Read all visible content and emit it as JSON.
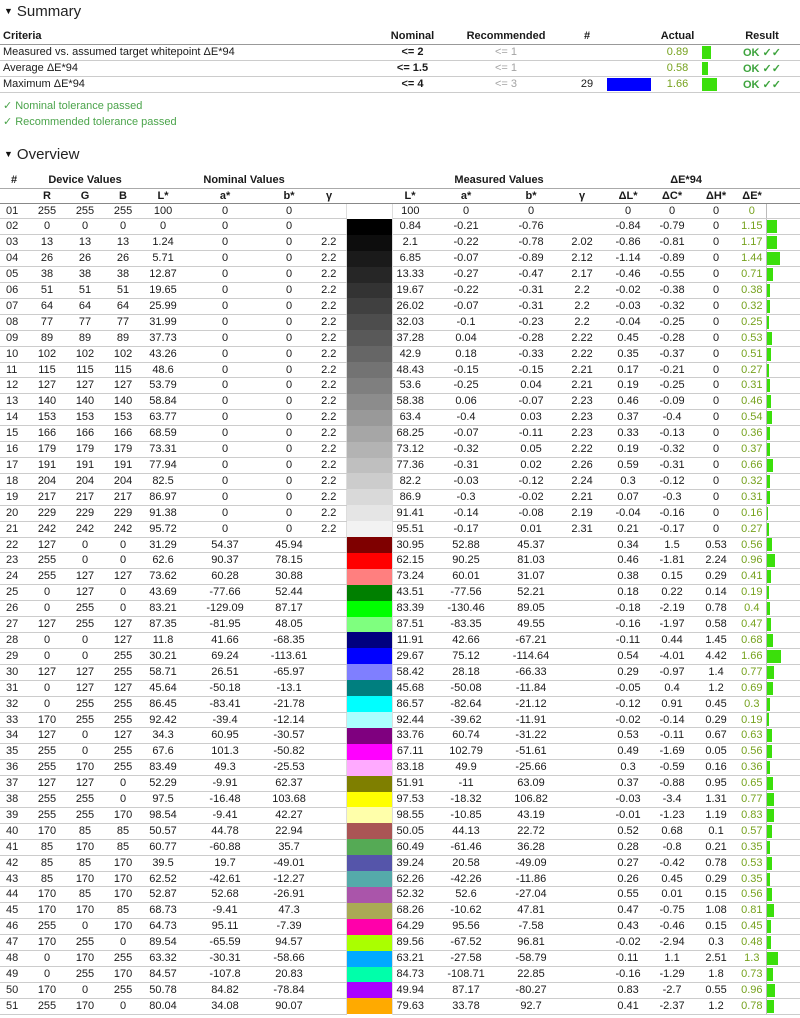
{
  "summary": {
    "title": "Summary",
    "headers": {
      "criteria": "Criteria",
      "nominal": "Nominal",
      "recommended": "Recommended",
      "count": "#",
      "actual": "Actual",
      "result": "Result"
    },
    "rows": [
      {
        "criteria": "Measured vs. assumed target whitepoint ΔE*94",
        "nominal": "<= 2",
        "recommended": "<= 1",
        "count": "",
        "swatch": "",
        "actual": "0.89",
        "result": "OK ✓✓"
      },
      {
        "criteria": "Average ΔE*94",
        "nominal": "<= 1.5",
        "recommended": "<= 1",
        "count": "",
        "swatch": "",
        "actual": "0.58",
        "result": "OK ✓✓"
      },
      {
        "criteria": "Maximum ΔE*94",
        "nominal": "<= 4",
        "recommended": "<= 3",
        "count": "29",
        "swatch": "#0000FF",
        "actual": "1.66",
        "result": "OK ✓✓"
      }
    ],
    "notes": [
      {
        "icon": "✓",
        "text": "Nominal tolerance passed"
      },
      {
        "icon": "✓",
        "text": "Recommended tolerance passed"
      }
    ]
  },
  "overview": {
    "title": "Overview",
    "groups": {
      "num": "#",
      "device": "Device Values",
      "nominal": "Nominal Values",
      "measured": "Measured Values",
      "de94": "ΔE*94"
    },
    "cols": [
      "R",
      "G",
      "B",
      "L*",
      "a*",
      "b*",
      "γ",
      "L*",
      "a*",
      "b*",
      "γ",
      "ΔL*",
      "ΔC*",
      "ΔH*",
      "ΔE*"
    ],
    "row_fields": [
      "index",
      "R",
      "G",
      "B",
      "nominal_L",
      "nominal_a",
      "nominal_b",
      "nominal_gamma",
      "measured_L",
      "measured_a",
      "measured_b",
      "measured_gamma",
      "delta_L",
      "delta_C",
      "delta_H",
      "delta_E"
    ],
    "rows": [
      [
        "01",
        "255",
        "255",
        "255",
        "100",
        "0",
        "0",
        "",
        "100",
        "0",
        "0",
        "",
        "0",
        "0",
        "0",
        "0"
      ],
      [
        "02",
        "0",
        "0",
        "0",
        "0",
        "0",
        "0",
        "",
        "0.84",
        "-0.21",
        "-0.76",
        "",
        "-0.84",
        "-0.79",
        "0",
        "1.15"
      ],
      [
        "03",
        "13",
        "13",
        "13",
        "1.24",
        "0",
        "0",
        "2.2",
        "2.1",
        "-0.22",
        "-0.78",
        "2.02",
        "-0.86",
        "-0.81",
        "0",
        "1.17"
      ],
      [
        "04",
        "26",
        "26",
        "26",
        "5.71",
        "0",
        "0",
        "2.2",
        "6.85",
        "-0.07",
        "-0.89",
        "2.12",
        "-1.14",
        "-0.89",
        "0",
        "1.44"
      ],
      [
        "05",
        "38",
        "38",
        "38",
        "12.87",
        "0",
        "0",
        "2.2",
        "13.33",
        "-0.27",
        "-0.47",
        "2.17",
        "-0.46",
        "-0.55",
        "0",
        "0.71"
      ],
      [
        "06",
        "51",
        "51",
        "51",
        "19.65",
        "0",
        "0",
        "2.2",
        "19.67",
        "-0.22",
        "-0.31",
        "2.2",
        "-0.02",
        "-0.38",
        "0",
        "0.38"
      ],
      [
        "07",
        "64",
        "64",
        "64",
        "25.99",
        "0",
        "0",
        "2.2",
        "26.02",
        "-0.07",
        "-0.31",
        "2.2",
        "-0.03",
        "-0.32",
        "0",
        "0.32"
      ],
      [
        "08",
        "77",
        "77",
        "77",
        "31.99",
        "0",
        "0",
        "2.2",
        "32.03",
        "-0.1",
        "-0.23",
        "2.2",
        "-0.04",
        "-0.25",
        "0",
        "0.25"
      ],
      [
        "09",
        "89",
        "89",
        "89",
        "37.73",
        "0",
        "0",
        "2.2",
        "37.28",
        "0.04",
        "-0.28",
        "2.22",
        "0.45",
        "-0.28",
        "0",
        "0.53"
      ],
      [
        "10",
        "102",
        "102",
        "102",
        "43.26",
        "0",
        "0",
        "2.2",
        "42.9",
        "0.18",
        "-0.33",
        "2.22",
        "0.35",
        "-0.37",
        "0",
        "0.51"
      ],
      [
        "11",
        "115",
        "115",
        "115",
        "48.6",
        "0",
        "0",
        "2.2",
        "48.43",
        "-0.15",
        "-0.15",
        "2.21",
        "0.17",
        "-0.21",
        "0",
        "0.27"
      ],
      [
        "12",
        "127",
        "127",
        "127",
        "53.79",
        "0",
        "0",
        "2.2",
        "53.6",
        "-0.25",
        "0.04",
        "2.21",
        "0.19",
        "-0.25",
        "0",
        "0.31"
      ],
      [
        "13",
        "140",
        "140",
        "140",
        "58.84",
        "0",
        "0",
        "2.2",
        "58.38",
        "0.06",
        "-0.07",
        "2.23",
        "0.46",
        "-0.09",
        "0",
        "0.46"
      ],
      [
        "14",
        "153",
        "153",
        "153",
        "63.77",
        "0",
        "0",
        "2.2",
        "63.4",
        "-0.4",
        "0.03",
        "2.23",
        "0.37",
        "-0.4",
        "0",
        "0.54"
      ],
      [
        "15",
        "166",
        "166",
        "166",
        "68.59",
        "0",
        "0",
        "2.2",
        "68.25",
        "-0.07",
        "-0.11",
        "2.23",
        "0.33",
        "-0.13",
        "0",
        "0.36"
      ],
      [
        "16",
        "179",
        "179",
        "179",
        "73.31",
        "0",
        "0",
        "2.2",
        "73.12",
        "-0.32",
        "0.05",
        "2.22",
        "0.19",
        "-0.32",
        "0",
        "0.37"
      ],
      [
        "17",
        "191",
        "191",
        "191",
        "77.94",
        "0",
        "0",
        "2.2",
        "77.36",
        "-0.31",
        "0.02",
        "2.26",
        "0.59",
        "-0.31",
        "0",
        "0.66"
      ],
      [
        "18",
        "204",
        "204",
        "204",
        "82.5",
        "0",
        "0",
        "2.2",
        "82.2",
        "-0.03",
        "-0.12",
        "2.24",
        "0.3",
        "-0.12",
        "0",
        "0.32"
      ],
      [
        "19",
        "217",
        "217",
        "217",
        "86.97",
        "0",
        "0",
        "2.2",
        "86.9",
        "-0.3",
        "-0.02",
        "2.21",
        "0.07",
        "-0.3",
        "0",
        "0.31"
      ],
      [
        "20",
        "229",
        "229",
        "229",
        "91.38",
        "0",
        "0",
        "2.2",
        "91.41",
        "-0.14",
        "-0.08",
        "2.19",
        "-0.04",
        "-0.16",
        "0",
        "0.16"
      ],
      [
        "21",
        "242",
        "242",
        "242",
        "95.72",
        "0",
        "0",
        "2.2",
        "95.51",
        "-0.17",
        "0.01",
        "2.31",
        "0.21",
        "-0.17",
        "0",
        "0.27"
      ],
      [
        "22",
        "127",
        "0",
        "0",
        "31.29",
        "54.37",
        "45.94",
        "",
        "30.95",
        "52.88",
        "45.37",
        "",
        "0.34",
        "1.5",
        "0.53",
        "0.56"
      ],
      [
        "23",
        "255",
        "0",
        "0",
        "62.6",
        "90.37",
        "78.15",
        "",
        "62.15",
        "90.25",
        "81.03",
        "",
        "0.46",
        "-1.81",
        "2.24",
        "0.96"
      ],
      [
        "24",
        "255",
        "127",
        "127",
        "73.62",
        "60.28",
        "30.88",
        "",
        "73.24",
        "60.01",
        "31.07",
        "",
        "0.38",
        "0.15",
        "0.29",
        "0.41"
      ],
      [
        "25",
        "0",
        "127",
        "0",
        "43.69",
        "-77.66",
        "52.44",
        "",
        "43.51",
        "-77.56",
        "52.21",
        "",
        "0.18",
        "0.22",
        "0.14",
        "0.19"
      ],
      [
        "26",
        "0",
        "255",
        "0",
        "83.21",
        "-129.09",
        "87.17",
        "",
        "83.39",
        "-130.46",
        "89.05",
        "",
        "-0.18",
        "-2.19",
        "0.78",
        "0.4"
      ],
      [
        "27",
        "127",
        "255",
        "127",
        "87.35",
        "-81.95",
        "48.05",
        "",
        "87.51",
        "-83.35",
        "49.55",
        "",
        "-0.16",
        "-1.97",
        "0.58",
        "0.47"
      ],
      [
        "28",
        "0",
        "0",
        "127",
        "11.8",
        "41.66",
        "-68.35",
        "",
        "11.91",
        "42.66",
        "-67.21",
        "",
        "-0.11",
        "0.44",
        "1.45",
        "0.68"
      ],
      [
        "29",
        "0",
        "0",
        "255",
        "30.21",
        "69.24",
        "-113.61",
        "",
        "29.67",
        "75.12",
        "-114.64",
        "",
        "0.54",
        "-4.01",
        "4.42",
        "1.66"
      ],
      [
        "30",
        "127",
        "127",
        "255",
        "58.71",
        "26.51",
        "-65.97",
        "",
        "58.42",
        "28.18",
        "-66.33",
        "",
        "0.29",
        "-0.97",
        "1.4",
        "0.77"
      ],
      [
        "31",
        "0",
        "127",
        "127",
        "45.64",
        "-50.18",
        "-13.1",
        "",
        "45.68",
        "-50.08",
        "-11.84",
        "",
        "-0.05",
        "0.4",
        "1.2",
        "0.69"
      ],
      [
        "32",
        "0",
        "255",
        "255",
        "86.45",
        "-83.41",
        "-21.78",
        "",
        "86.57",
        "-82.64",
        "-21.12",
        "",
        "-0.12",
        "0.91",
        "0.45",
        "0.3"
      ],
      [
        "33",
        "170",
        "255",
        "255",
        "92.42",
        "-39.4",
        "-12.14",
        "",
        "92.44",
        "-39.62",
        "-11.91",
        "",
        "-0.02",
        "-0.14",
        "0.29",
        "0.19"
      ],
      [
        "34",
        "127",
        "0",
        "127",
        "34.3",
        "60.95",
        "-30.57",
        "",
        "33.76",
        "60.74",
        "-31.22",
        "",
        "0.53",
        "-0.11",
        "0.67",
        "0.63"
      ],
      [
        "35",
        "255",
        "0",
        "255",
        "67.6",
        "101.3",
        "-50.82",
        "",
        "67.11",
        "102.79",
        "-51.61",
        "",
        "0.49",
        "-1.69",
        "0.05",
        "0.56"
      ],
      [
        "36",
        "255",
        "170",
        "255",
        "83.49",
        "49.3",
        "-25.53",
        "",
        "83.18",
        "49.9",
        "-25.66",
        "",
        "0.3",
        "-0.59",
        "0.16",
        "0.36"
      ],
      [
        "37",
        "127",
        "127",
        "0",
        "52.29",
        "-9.91",
        "62.37",
        "",
        "51.91",
        "-11",
        "63.09",
        "",
        "0.37",
        "-0.88",
        "0.95",
        "0.65"
      ],
      [
        "38",
        "255",
        "255",
        "0",
        "97.5",
        "-16.48",
        "103.68",
        "",
        "97.53",
        "-18.32",
        "106.82",
        "",
        "-0.03",
        "-3.4",
        "1.31",
        "0.77"
      ],
      [
        "39",
        "255",
        "255",
        "170",
        "98.54",
        "-9.41",
        "42.27",
        "",
        "98.55",
        "-10.85",
        "43.19",
        "",
        "-0.01",
        "-1.23",
        "1.19",
        "0.83"
      ],
      [
        "40",
        "170",
        "85",
        "85",
        "50.57",
        "44.78",
        "22.94",
        "",
        "50.05",
        "44.13",
        "22.72",
        "",
        "0.52",
        "0.68",
        "0.1",
        "0.57"
      ],
      [
        "41",
        "85",
        "170",
        "85",
        "60.77",
        "-60.88",
        "35.7",
        "",
        "60.49",
        "-61.46",
        "36.28",
        "",
        "0.28",
        "-0.8",
        "0.21",
        "0.35"
      ],
      [
        "42",
        "85",
        "85",
        "170",
        "39.5",
        "19.7",
        "-49.01",
        "",
        "39.24",
        "20.58",
        "-49.09",
        "",
        "0.27",
        "-0.42",
        "0.78",
        "0.53"
      ],
      [
        "43",
        "85",
        "170",
        "170",
        "62.52",
        "-42.61",
        "-12.27",
        "",
        "62.26",
        "-42.26",
        "-11.86",
        "",
        "0.26",
        "0.45",
        "0.29",
        "0.35"
      ],
      [
        "44",
        "170",
        "85",
        "170",
        "52.87",
        "52.68",
        "-26.91",
        "",
        "52.32",
        "52.6",
        "-27.04",
        "",
        "0.55",
        "0.01",
        "0.15",
        "0.56"
      ],
      [
        "45",
        "170",
        "170",
        "85",
        "68.73",
        "-9.41",
        "47.3",
        "",
        "68.26",
        "-10.62",
        "47.81",
        "",
        "0.47",
        "-0.75",
        "1.08",
        "0.81"
      ],
      [
        "46",
        "255",
        "0",
        "170",
        "64.73",
        "95.11",
        "-7.39",
        "",
        "64.29",
        "95.56",
        "-7.58",
        "",
        "0.43",
        "-0.46",
        "0.15",
        "0.45"
      ],
      [
        "47",
        "170",
        "255",
        "0",
        "89.54",
        "-65.59",
        "94.57",
        "",
        "89.56",
        "-67.52",
        "96.81",
        "",
        "-0.02",
        "-2.94",
        "0.3",
        "0.48"
      ],
      [
        "48",
        "0",
        "170",
        "255",
        "63.32",
        "-30.31",
        "-58.66",
        "",
        "63.21",
        "-27.58",
        "-58.79",
        "",
        "0.11",
        "1.1",
        "2.51",
        "1.3"
      ],
      [
        "49",
        "0",
        "255",
        "170",
        "84.57",
        "-107.8",
        "20.83",
        "",
        "84.73",
        "-108.71",
        "22.85",
        "",
        "-0.16",
        "-1.29",
        "1.8",
        "0.73"
      ],
      [
        "50",
        "170",
        "0",
        "255",
        "50.78",
        "84.82",
        "-78.84",
        "",
        "49.94",
        "87.17",
        "-80.27",
        "",
        "0.83",
        "-2.7",
        "0.55",
        "0.96"
      ],
      [
        "51",
        "255",
        "170",
        "0",
        "80.04",
        "34.08",
        "90.07",
        "",
        "79.63",
        "33.78",
        "92.7",
        "",
        "0.41",
        "-2.37",
        "1.2",
        "0.78"
      ]
    ]
  },
  "colors": {
    "bar_green": "#3bdf0b",
    "value_green": "#76a21e",
    "ok_green": "#3ea43e",
    "note_green": "#4ba44b",
    "max_swatch_blue": "#0000FF",
    "muted_gray": "#a3a3a3"
  }
}
